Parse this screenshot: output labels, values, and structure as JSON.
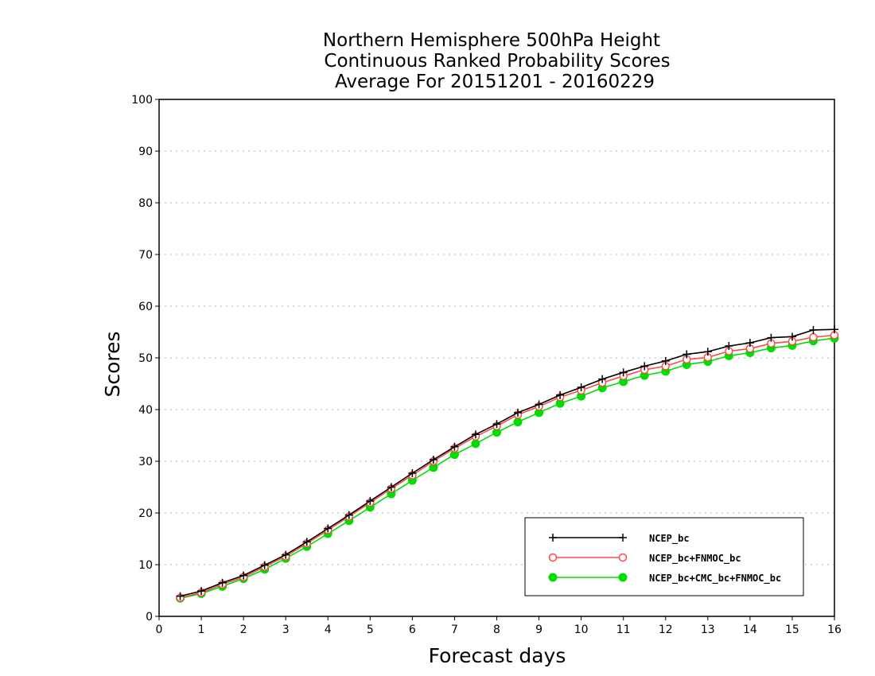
{
  "chart_data": {
    "type": "line",
    "title": [
      "Northern Hemisphere 500hPa Height",
      "Continuous Ranked Probability Scores",
      "Average For 20151201 - 20160229"
    ],
    "xlabel": "Forecast days",
    "ylabel": "Scores",
    "xlim": [
      0,
      16
    ],
    "ylim": [
      0,
      100
    ],
    "xticks": [
      0,
      1,
      2,
      3,
      4,
      5,
      6,
      7,
      8,
      9,
      10,
      11,
      12,
      13,
      14,
      15,
      16
    ],
    "yticks": [
      0,
      10,
      20,
      30,
      40,
      50,
      60,
      70,
      80,
      90,
      100
    ],
    "grid": "horizontal dotted",
    "legend_position": "bottom-right",
    "x": [
      0.5,
      1,
      1.5,
      2,
      2.5,
      3,
      3.5,
      4,
      4.5,
      5,
      5.5,
      6,
      6.5,
      7,
      7.5,
      8,
      8.5,
      9,
      9.5,
      10,
      10.5,
      11,
      11.5,
      12,
      12.5,
      13,
      13.5,
      14,
      14.5,
      15,
      15.5,
      16
    ],
    "series": [
      {
        "name": "NCEP_bc",
        "color": "#000000",
        "marker": "plus",
        "values": [
          3.9,
          4.9,
          6.5,
          7.9,
          9.9,
          11.9,
          14.4,
          17.0,
          19.6,
          22.3,
          25.0,
          27.7,
          30.3,
          32.8,
          35.2,
          37.2,
          39.4,
          41.0,
          42.8,
          44.3,
          45.9,
          47.2,
          48.4,
          49.4,
          50.7,
          51.2,
          52.3,
          52.9,
          53.9,
          54.1,
          55.4,
          55.5
        ]
      },
      {
        "name": "NCEP_bc+FNMOC_bc",
        "color": "#ff4a4a",
        "marker": "open-circle",
        "values": [
          3.6,
          4.6,
          6.2,
          7.6,
          9.6,
          11.6,
          14.1,
          16.7,
          19.3,
          22.0,
          24.7,
          27.3,
          30.0,
          32.5,
          34.8,
          36.8,
          39.0,
          40.6,
          42.4,
          43.7,
          45.2,
          46.5,
          47.7,
          48.4,
          49.7,
          50.1,
          51.3,
          51.8,
          52.8,
          53.2,
          54.0,
          54.4
        ]
      },
      {
        "name": "NCEP_bc+CMC_bc+FNMOC_bc",
        "color": "#00dd00",
        "marker": "filled-circle",
        "values": [
          3.5,
          4.4,
          5.8,
          7.3,
          9.1,
          11.2,
          13.5,
          16.0,
          18.5,
          21.1,
          23.7,
          26.3,
          28.8,
          31.3,
          33.4,
          35.6,
          37.6,
          39.4,
          41.2,
          42.6,
          44.2,
          45.4,
          46.6,
          47.4,
          48.7,
          49.3,
          50.4,
          51.0,
          51.9,
          52.4,
          53.3,
          53.8
        ]
      }
    ]
  }
}
